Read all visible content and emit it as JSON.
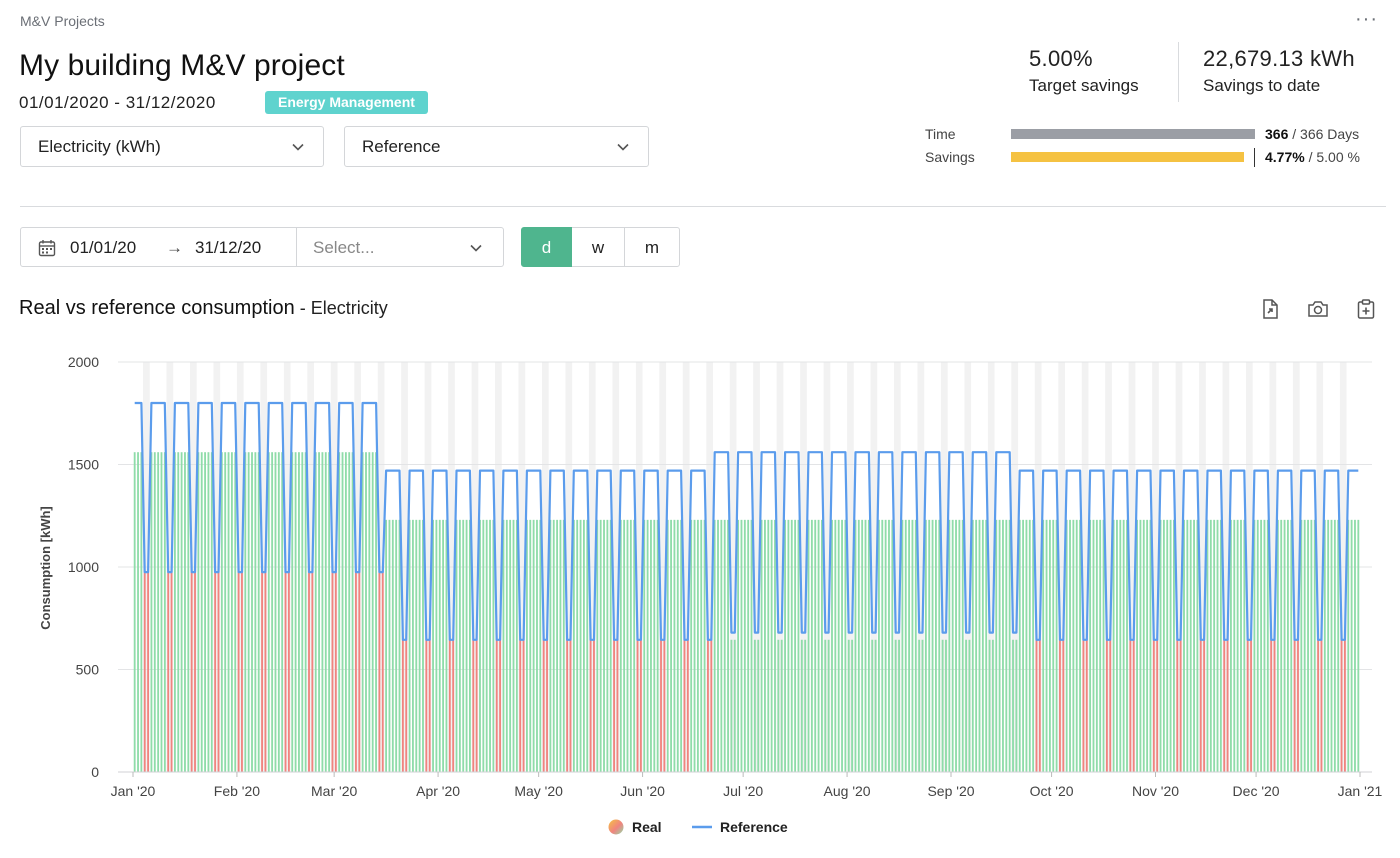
{
  "breadcrumb": "M&V Projects",
  "more_label": "···",
  "title": "My building M&V project",
  "date_range": "01/01/2020 - 31/12/2020",
  "badge": "Energy Management",
  "selects": {
    "meter": "Electricity (kWh)",
    "reference": "Reference"
  },
  "kpis": {
    "target_value": "5.00%",
    "target_label": "Target savings",
    "savings_value": "22,679.13 kWh",
    "savings_label": "Savings to date"
  },
  "progress": {
    "time_label": "Time",
    "time_value": "366",
    "time_total": " / 366 Days",
    "time_fraction": 1.0,
    "savings_label": "Savings",
    "savings_value": "4.77%",
    "savings_total": " / 5.00 %",
    "savings_fraction": 0.954,
    "time_color": "#9b9ea5",
    "savings_color": "#f5c242"
  },
  "filters": {
    "from": "01/01/20",
    "arrow": "→",
    "to": "31/12/20",
    "period_placeholder": "Select...",
    "granularity": [
      "d",
      "w",
      "m"
    ],
    "active_granularity": "d"
  },
  "chart_header": {
    "title": "Real vs reference consumption",
    "separator": " - ",
    "subtitle": "Electricity"
  },
  "chart_data": {
    "type": "bar",
    "ylabel": "Consumption [kWh]",
    "ylim": [
      0,
      2000
    ],
    "yticks": [
      0,
      500,
      1000,
      1500,
      2000
    ],
    "x_range": [
      "2020-01-01",
      "2021-01-01"
    ],
    "x_ticks": [
      "Jan '20",
      "Feb '20",
      "Mar '20",
      "Apr '20",
      "May '20",
      "Jun '20",
      "Jul '20",
      "Aug '20",
      "Sep '20",
      "Oct '20",
      "Nov '20",
      "Dec '20",
      "Jan '21"
    ],
    "legend": [
      {
        "name": "Real",
        "type": "bar"
      },
      {
        "name": "Reference",
        "type": "line"
      }
    ],
    "legend_position": "bottom",
    "weekend_shading": true,
    "colors": {
      "real_below_reference": "#8fdca9",
      "real_above_reference": "#f0847f",
      "real_near_reference": "#f5c242",
      "reference_line": "#5b9cec",
      "weekend_band": "#f2f2f2"
    },
    "reference_profile": [
      {
        "from": "2020-01-01",
        "to": "2020-03-15",
        "weekday": 1800,
        "weekend": 975
      },
      {
        "from": "2020-03-16",
        "to": "2020-06-21",
        "weekday": 1470,
        "weekend": 645
      },
      {
        "from": "2020-06-22",
        "to": "2020-09-20",
        "weekday": 1560,
        "weekend": 680
      },
      {
        "from": "2020-09-21",
        "to": "2020-12-31",
        "weekday": 1470,
        "weekend": 645
      }
    ],
    "real_profile": [
      {
        "from": "2020-01-01",
        "to": "2020-03-15",
        "weekday": 1560,
        "weekend": 975
      },
      {
        "from": "2020-03-16",
        "to": "2020-12-31",
        "weekday": 1230,
        "weekend": 645
      }
    ]
  }
}
